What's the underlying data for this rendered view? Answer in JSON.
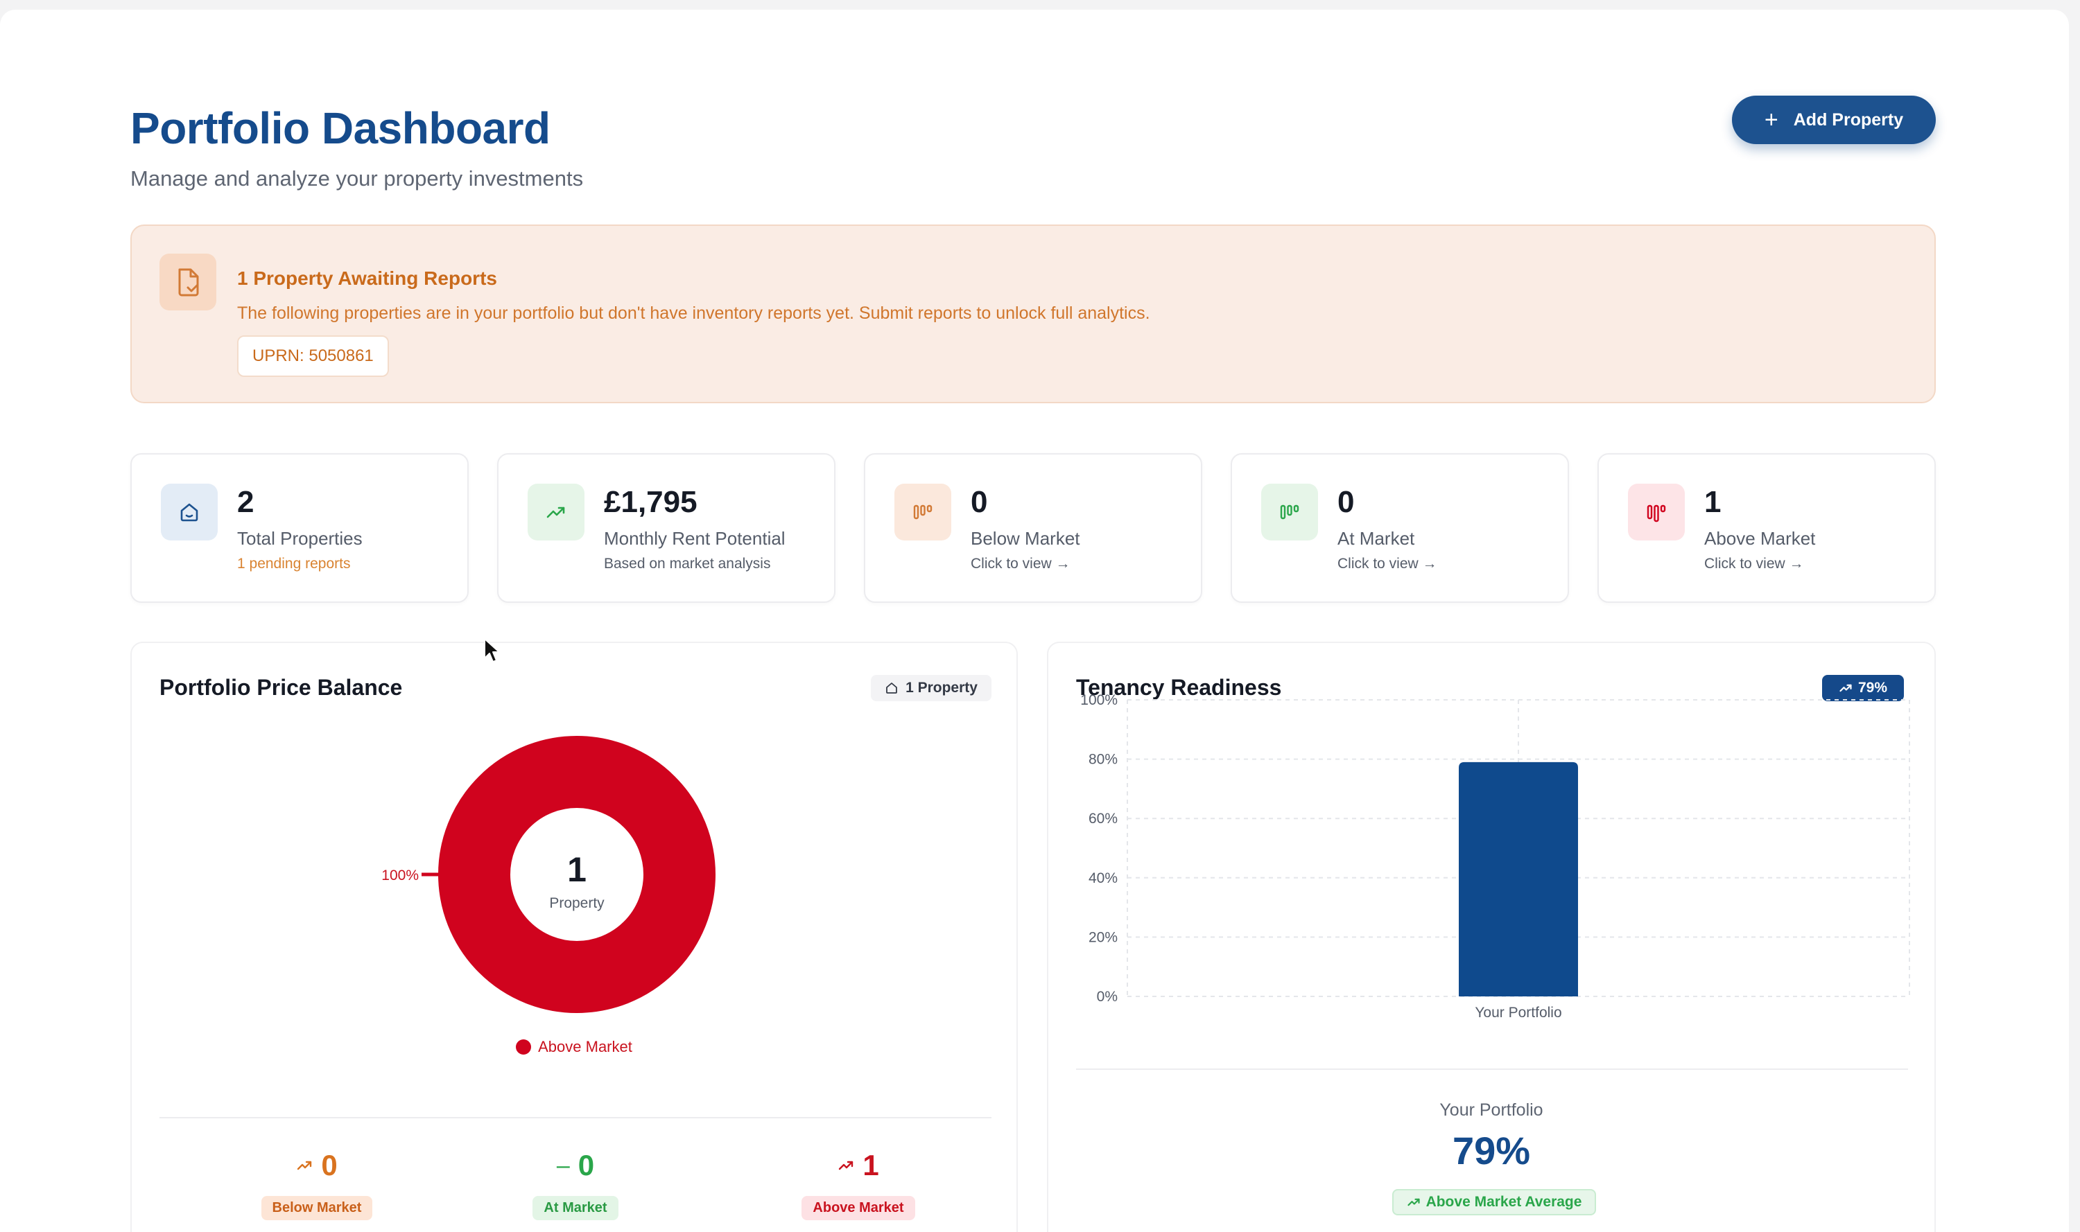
{
  "header": {
    "title": "Portfolio Dashboard",
    "subtitle": "Manage and analyze your property investments",
    "add_button_label": "Add Property"
  },
  "alert": {
    "title": "1 Property Awaiting Reports",
    "text": "The following properties are in your portfolio but don't have inventory reports yet. Submit reports to unlock full analytics.",
    "chip": "UPRN: 5050861",
    "icon": "document-check-icon"
  },
  "stats": [
    {
      "value": "2",
      "label": "Total Properties",
      "sub": "1 pending reports",
      "icon": "home-icon",
      "icon_bg": "#e3ecf6",
      "icon_color": "#1d528f",
      "sub_color": "#d98331"
    },
    {
      "value": "£1,795",
      "label": "Monthly Rent Potential",
      "sub": "Based on market analysis",
      "icon": "trending-up-icon",
      "icon_bg": "#e6f5e8",
      "icon_color": "#2aa64a",
      "sub_color": "#555c69"
    },
    {
      "value": "0",
      "label": "Below Market",
      "sub": "Click to view →",
      "icon": "bars-icon",
      "icon_bg": "#fbe8dc",
      "icon_color": "#d27a36",
      "sub_color": "#555c69"
    },
    {
      "value": "0",
      "label": "At Market",
      "sub": "Click to view →",
      "icon": "bars-icon",
      "icon_bg": "#e6f5e8",
      "icon_color": "#2aa64a",
      "sub_color": "#555c69"
    },
    {
      "value": "1",
      "label": "Above Market",
      "sub": "Click to view →",
      "icon": "bars-icon",
      "icon_bg": "#fde4e7",
      "icon_color": "#d0031e",
      "sub_color": "#555c69"
    }
  ],
  "price_balance": {
    "title": "Portfolio Price Balance",
    "badge": "1 Property",
    "center_value": "1",
    "center_label": "Property",
    "counts": [
      {
        "value": "0",
        "label": "Below Market",
        "color": "#d9731f",
        "pill_bg": "#fde5d6",
        "pill_color": "#c9601a"
      },
      {
        "value": "0",
        "label": "At Market",
        "color": "#2aa64a",
        "pill_bg": "#e3f5e6",
        "pill_color": "#2a9a44"
      },
      {
        "value": "1",
        "label": "Above Market",
        "color": "#c9131f",
        "pill_bg": "#fde1e4",
        "pill_color": "#c9131f"
      }
    ]
  },
  "tenancy": {
    "title": "Tenancy Readiness",
    "badge": "79%",
    "score_label": "Your Portfolio",
    "score_value": "79%",
    "score_badge": "Above Market Average"
  },
  "chart_data": [
    {
      "type": "pie",
      "labels": [
        "Above Market"
      ],
      "values": [
        1
      ],
      "slice_labels": [
        "100%"
      ],
      "colors": [
        "#d0031e"
      ],
      "legend": "bottom"
    },
    {
      "type": "bar",
      "categories": [
        "Your Portfolio"
      ],
      "values": [
        79
      ],
      "ylim": [
        0,
        100
      ],
      "yticks": [
        "0%",
        "20%",
        "40%",
        "60%",
        "80%",
        "100%"
      ],
      "grid": true,
      "color": "#0f4a8d"
    }
  ]
}
